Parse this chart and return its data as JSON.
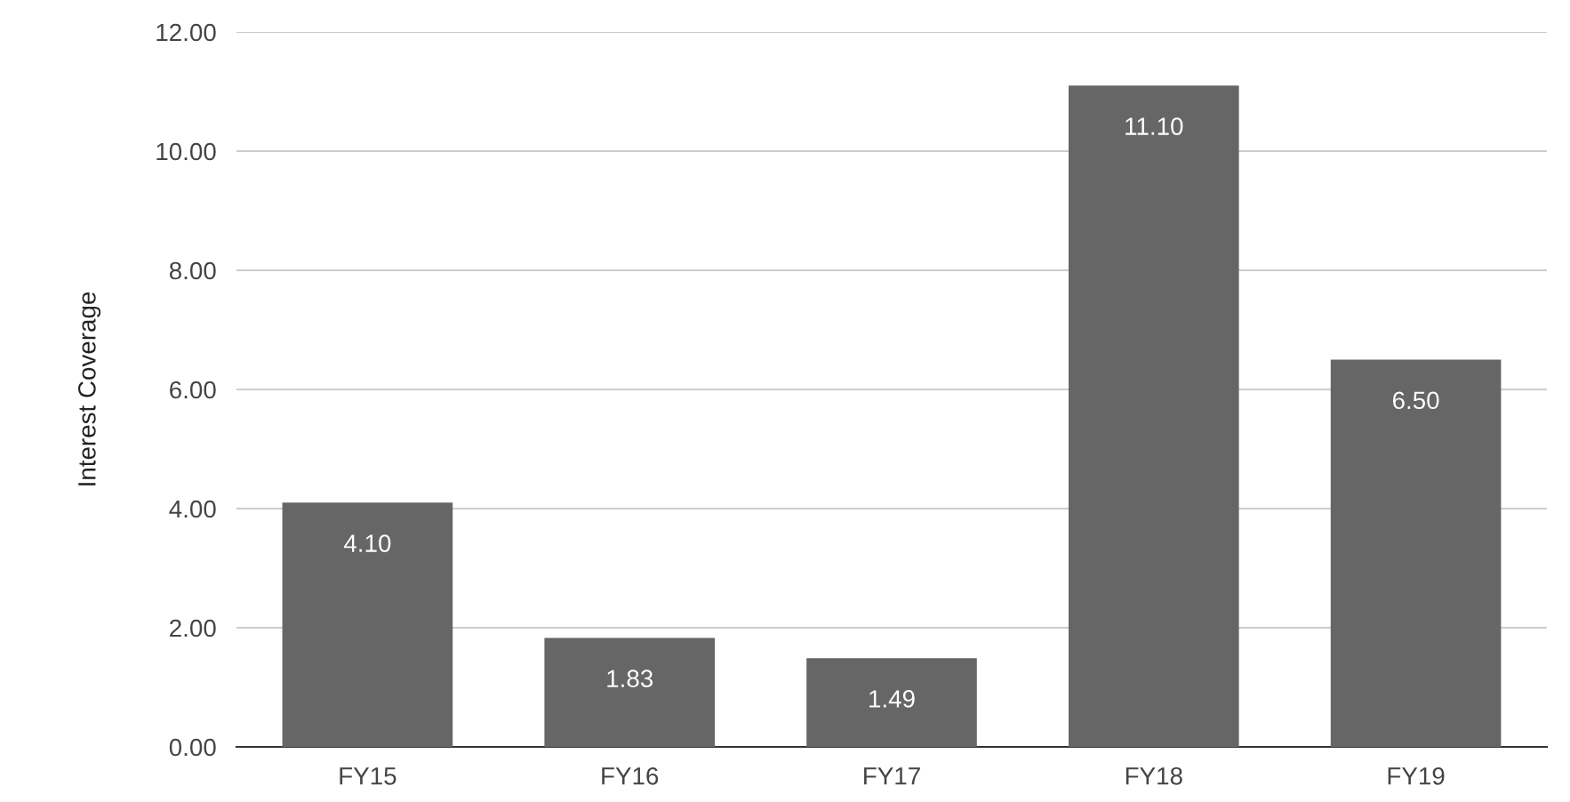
{
  "chart_data": {
    "type": "bar",
    "ylabel": "Interest Coverage",
    "categories": [
      "FY15",
      "FY16",
      "FY17",
      "FY18",
      "FY19"
    ],
    "values": [
      4.1,
      1.83,
      1.49,
      11.1,
      6.5
    ],
    "value_labels": [
      "4.10",
      "1.83",
      "1.49",
      "11.10",
      "6.50"
    ],
    "color": "#666666",
    "ylim": [
      0,
      12
    ],
    "yticks": [
      {
        "value": 0,
        "label": "0.00"
      },
      {
        "value": 2,
        "label": "2.00"
      },
      {
        "value": 4,
        "label": "4.00"
      },
      {
        "value": 6,
        "label": "6.00"
      },
      {
        "value": 8,
        "label": "8.00"
      },
      {
        "value": 10,
        "label": "10.00"
      },
      {
        "value": 12,
        "label": "12.00"
      }
    ],
    "grid": "y",
    "legend": false
  }
}
